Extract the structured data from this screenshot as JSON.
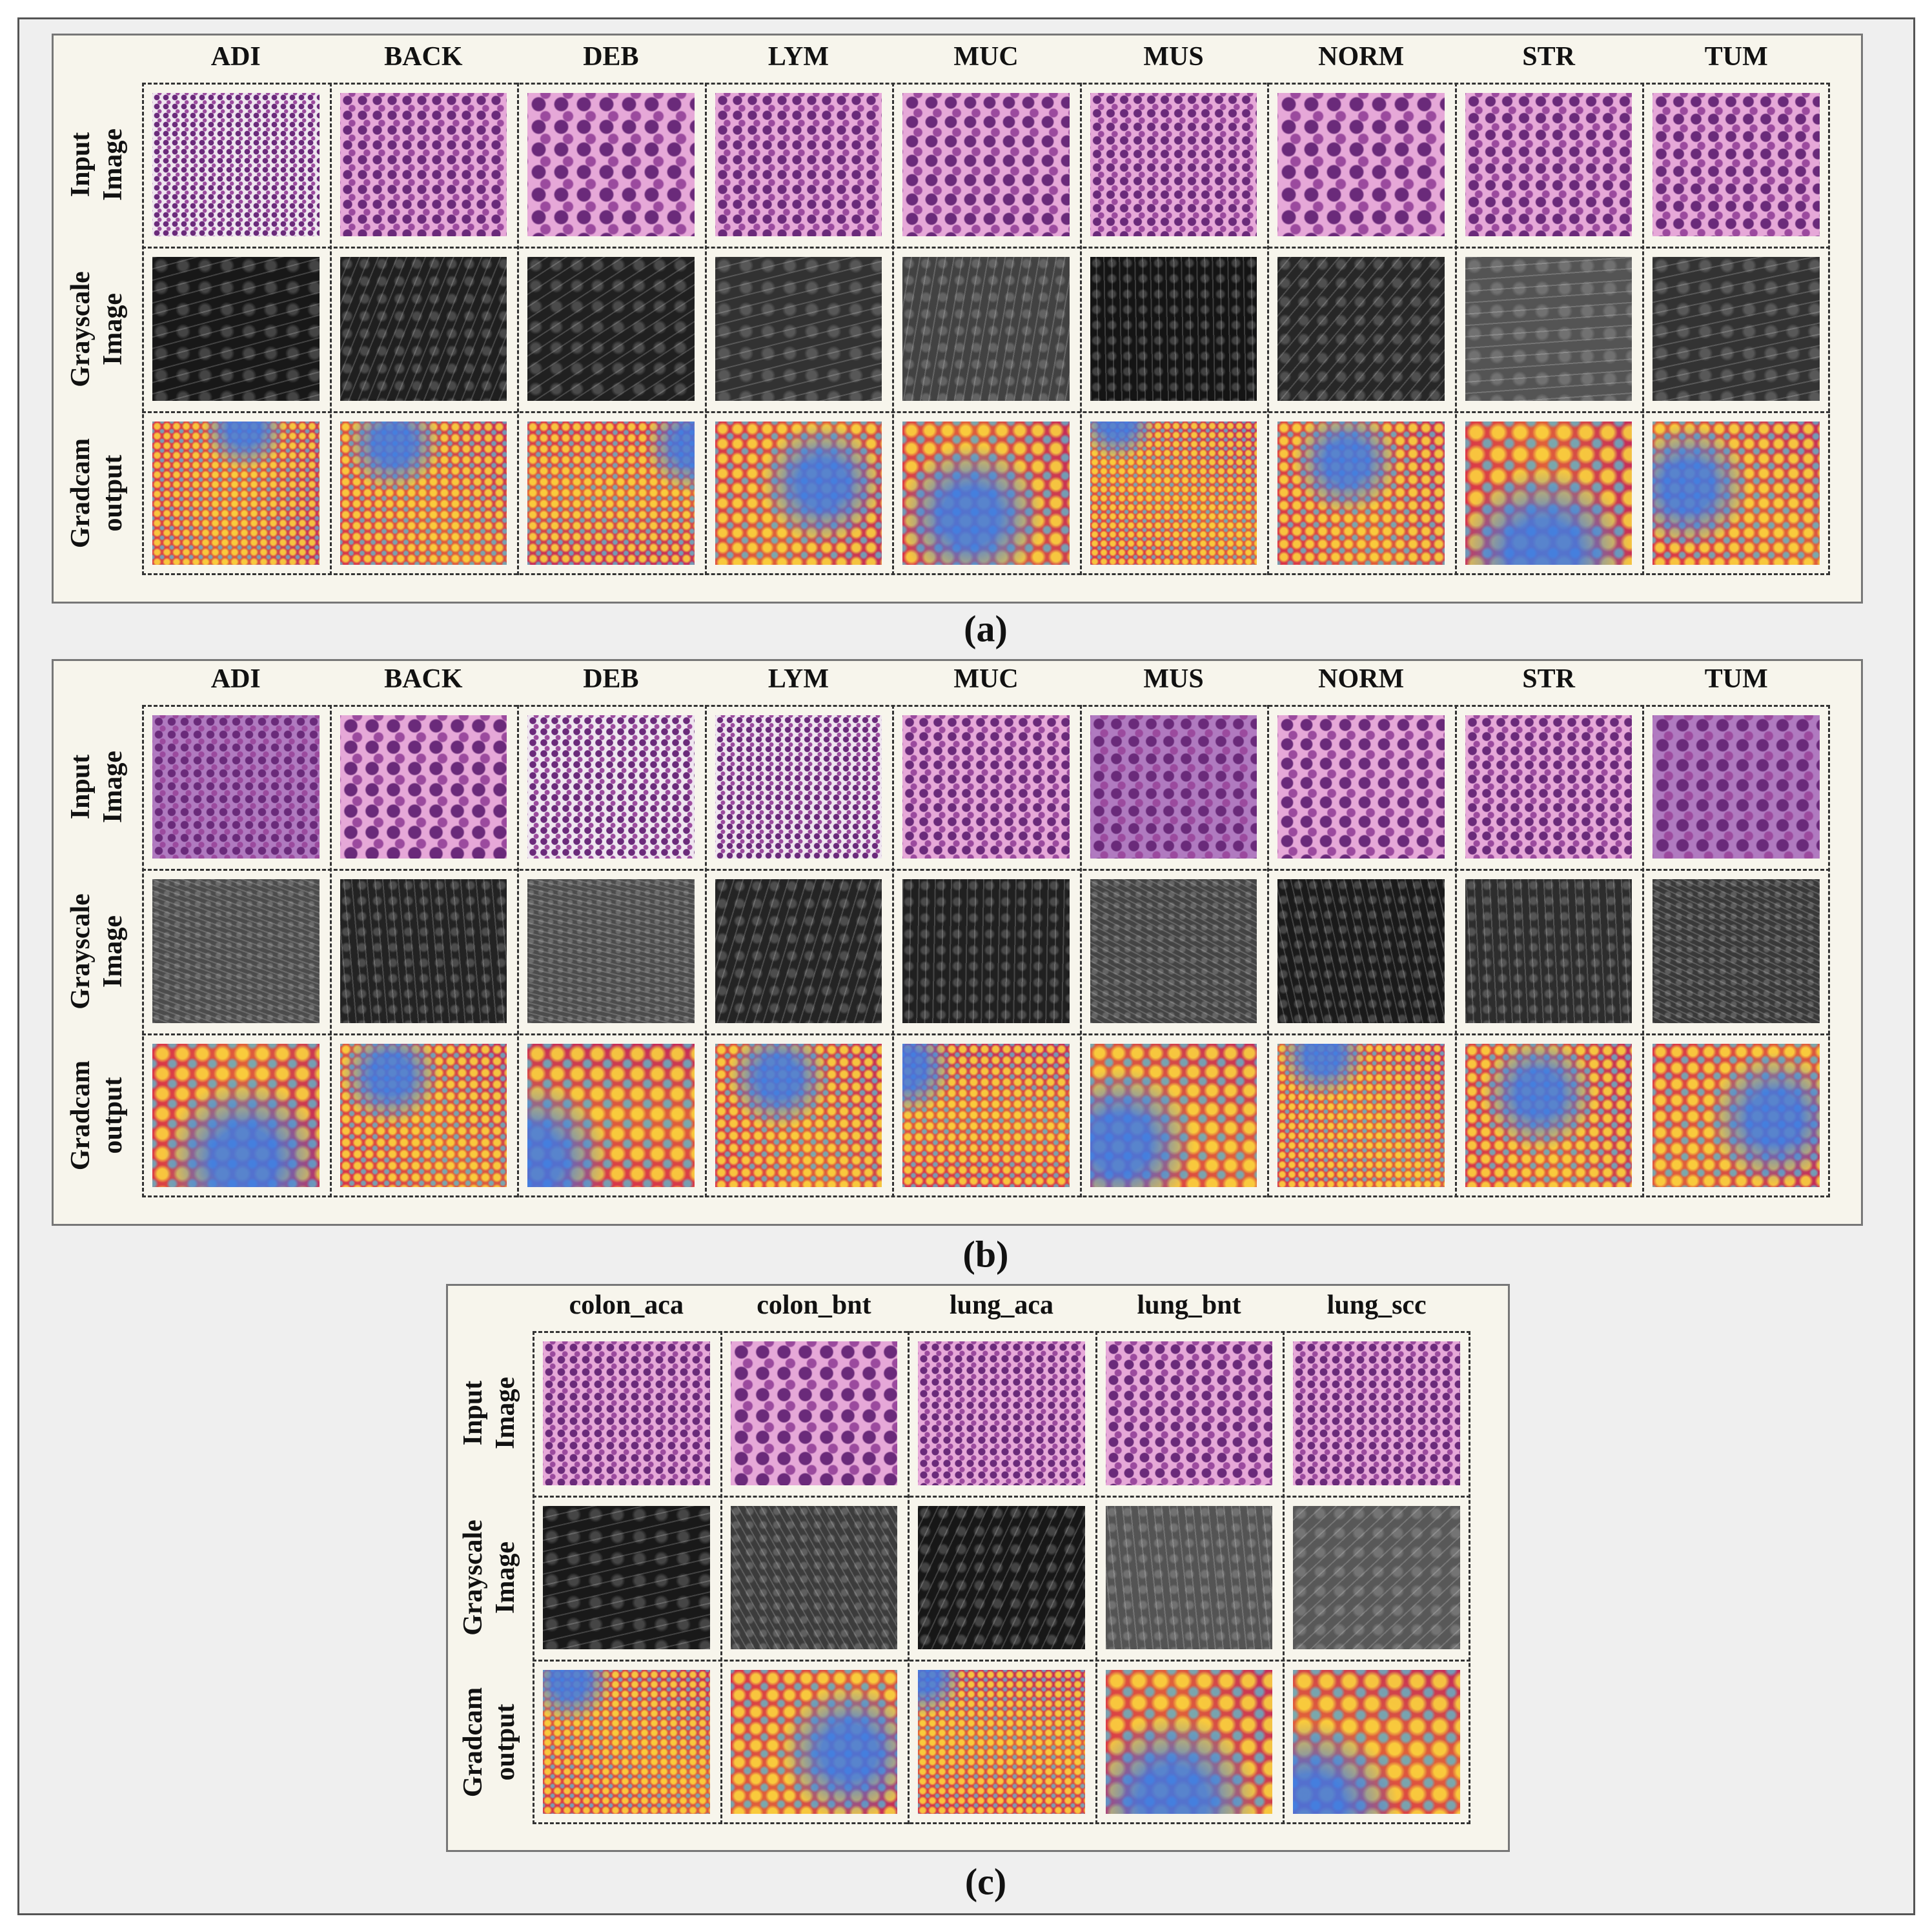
{
  "panels": [
    {
      "label": "(a)",
      "columns": [
        "ADI",
        "BACK",
        "DEB",
        "LYM",
        "MUC",
        "MUS",
        "NORM",
        "STR",
        "TUM"
      ],
      "rows": [
        [
          "Input",
          "Image"
        ],
        [
          "Grayscale",
          "Image"
        ],
        [
          "Gradcam",
          "output"
        ]
      ]
    },
    {
      "label": "(b)",
      "columns": [
        "ADI",
        "BACK",
        "DEB",
        "LYM",
        "MUC",
        "MUS",
        "NORM",
        "STR",
        "TUM"
      ],
      "rows": [
        [
          "Input",
          "Image"
        ],
        [
          "Grayscale",
          "Image"
        ],
        [
          "Gradcam",
          "output"
        ]
      ]
    },
    {
      "label": "(c)",
      "columns": [
        "colon_aca",
        "colon_bnt",
        "lung_aca",
        "lung_bnt",
        "lung_scc"
      ],
      "rows": [
        [
          "Input",
          "Image"
        ],
        [
          "Grayscale",
          "Image"
        ],
        [
          "Gradcam",
          "output"
        ]
      ]
    }
  ]
}
